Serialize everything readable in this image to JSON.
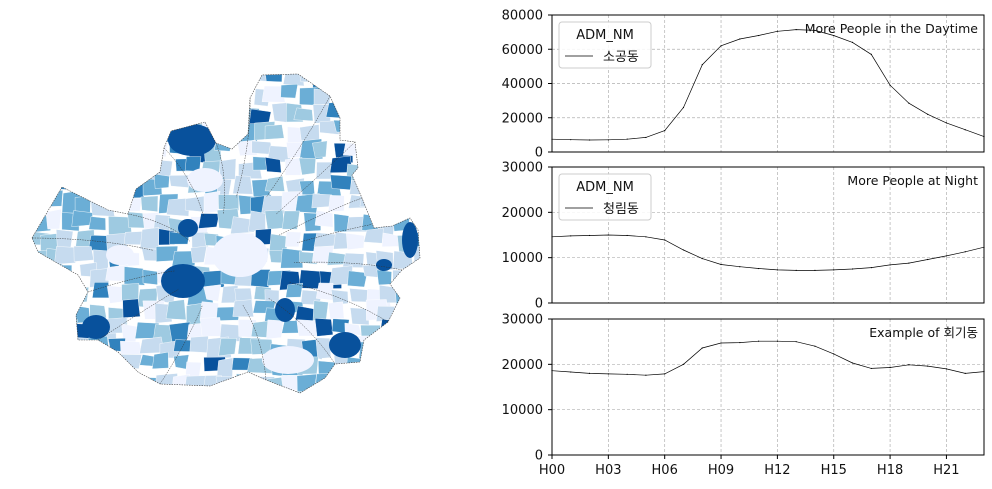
{
  "colors": {
    "map_palette": [
      "#eff3ff",
      "#c6dbef",
      "#9ecae1",
      "#6baed6",
      "#3182bd",
      "#08519c"
    ],
    "district_border": "#333333",
    "line": "#000000",
    "grid": "#b0b0b0"
  },
  "map": {
    "type": "choropleth",
    "color_scheme": "Blues"
  },
  "chart_data": [
    {
      "type": "line",
      "annotation": "More People in the Daytime",
      "legend": {
        "title": "ADM_NM",
        "placement": "top-left"
      },
      "ylim": [
        0,
        80000
      ],
      "yticks": [
        "0",
        "20000",
        "40000",
        "60000",
        "80000"
      ],
      "grid": true,
      "x": [
        "H00",
        "H01",
        "H02",
        "H03",
        "H04",
        "H05",
        "H06",
        "H07",
        "H08",
        "H09",
        "H10",
        "H11",
        "H12",
        "H13",
        "H14",
        "H15",
        "H16",
        "H17",
        "H18",
        "H19",
        "H20",
        "H21",
        "H22",
        "H23"
      ],
      "series": [
        {
          "name": "소공동",
          "values": [
            7500,
            7200,
            7000,
            7100,
            7500,
            8500,
            12500,
            26000,
            51000,
            62000,
            66000,
            68000,
            70500,
            71500,
            71000,
            68000,
            64000,
            57000,
            39000,
            28500,
            22000,
            17000,
            13000,
            9000
          ]
        }
      ]
    },
    {
      "type": "line",
      "annotation": "More People at Night",
      "legend": {
        "title": "ADM_NM",
        "placement": "top-left"
      },
      "ylim": [
        0,
        30000
      ],
      "yticks": [
        "0",
        "10000",
        "20000",
        "30000"
      ],
      "grid": true,
      "x": [
        "H00",
        "H01",
        "H02",
        "H03",
        "H04",
        "H05",
        "H06",
        "H07",
        "H08",
        "H09",
        "H10",
        "H11",
        "H12",
        "H13",
        "H14",
        "H15",
        "H16",
        "H17",
        "H18",
        "H19",
        "H20",
        "H21",
        "H22",
        "H23"
      ],
      "series": [
        {
          "name": "청림동",
          "values": [
            14600,
            14800,
            14900,
            15000,
            14900,
            14600,
            13900,
            11700,
            9800,
            8500,
            8000,
            7600,
            7300,
            7200,
            7200,
            7300,
            7500,
            7800,
            8400,
            8800,
            9600,
            10400,
            11300,
            12300
          ]
        }
      ]
    },
    {
      "type": "line",
      "annotation": "Example of 회기동",
      "ylim": [
        0,
        30000
      ],
      "yticks": [
        "0",
        "10000",
        "20000",
        "30000"
      ],
      "xticks": [
        "H00",
        "H03",
        "H06",
        "H09",
        "H12",
        "H15",
        "H18",
        "H21"
      ],
      "grid": true,
      "x": [
        "H00",
        "H01",
        "H02",
        "H03",
        "H04",
        "H05",
        "H06",
        "H07",
        "H08",
        "H09",
        "H10",
        "H11",
        "H12",
        "H13",
        "H14",
        "H15",
        "H16",
        "H17",
        "H18",
        "H19",
        "H20",
        "H21",
        "H22",
        "H23"
      ],
      "series": [
        {
          "values": [
            18600,
            18300,
            18000,
            17900,
            17800,
            17600,
            17900,
            20000,
            23600,
            24700,
            24800,
            25100,
            25100,
            25000,
            24000,
            22300,
            20300,
            19100,
            19300,
            19900,
            19600,
            19000,
            18000,
            18400
          ]
        }
      ]
    }
  ]
}
